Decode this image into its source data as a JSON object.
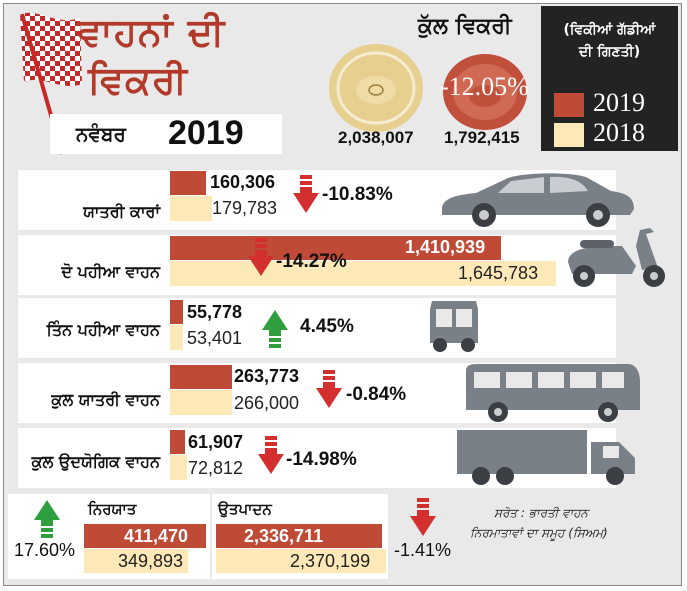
{
  "header": {
    "title_line1": "ਵਾਹਨਾਂ ਦੀ",
    "title_line2": "ਵਿਕਰੀ",
    "subtitle": "ਨਵੰਬਰ",
    "subtitle_year": "2019"
  },
  "total_sales": {
    "label": "ਕੁੱਲ ਵਿਕਰੀ",
    "value_2018": "2,038,007",
    "value_2019": "1,792,415",
    "change": "-12.05%"
  },
  "legend": {
    "title_line1": "(ਵਿਕੀਆਂ ਗੱਡੀਆਂ",
    "title_line2": "ਦੀ ਗਿਣਤੀ)",
    "items": [
      {
        "label": "2019",
        "color": "#bf4a36"
      },
      {
        "label": "2018",
        "color": "#fde9b8"
      }
    ]
  },
  "categories": [
    {
      "name": "ਯਾਤਰੀ ਕਾਰਾਂ",
      "v2019": "160,306",
      "v2018": "179,783",
      "change": "-10.83%",
      "direction": "down",
      "icon": "car-icon"
    },
    {
      "name": "ਦੋ ਪਹੀਆ ਵਾਹਨ",
      "v2019": "1,410,939",
      "v2018": "1,645,783",
      "change": "-14.27%",
      "direction": "down",
      "icon": "scooter-icon"
    },
    {
      "name": "ਤਿੰਨ ਪਹੀਆ ਵਾਹਨ",
      "v2019": "55,778",
      "v2018": "53,401",
      "change": "4.45%",
      "direction": "up",
      "icon": "auto-rickshaw-icon"
    },
    {
      "name": "ਕੁਲ ਯਾਤਰੀ ਵਾਹਨ",
      "v2019": "263,773",
      "v2018": "266,000",
      "change": "-0.84%",
      "direction": "down",
      "icon": "bus-icon"
    },
    {
      "name": "ਕੁਲ ਉਦਯੋਗਿਕ ਵਾਹਨ",
      "v2019": "61,907",
      "v2018": "72,812",
      "change": "-14.98%",
      "direction": "down",
      "icon": "truck-icon"
    }
  ],
  "exports": {
    "label": "ਨਿਰਯਾਤ",
    "v2019": "411,470",
    "v2018": "349,893",
    "change": "17.60%",
    "direction": "up"
  },
  "production": {
    "label": "ਉਤਪਾਦਨ",
    "v2019": "2,336,711",
    "v2018": "2,370,199",
    "change": "-1.41%",
    "direction": "down"
  },
  "source": {
    "line1": "ਸਰੋਤ : ਭਾਰਤੀ ਵਾਹਨ",
    "line2": "ਨਿਰਮਾਤਾਵਾਂ ਦਾ ਸਮੂਹ (ਸਿਅਮ)"
  },
  "chart_data": {
    "type": "bar",
    "title": "ਵਾਹਨਾਂ ਦੀ ਵਿਕਰੀ ਨਵੰਬਰ 2019",
    "categories": [
      "ਯਾਤਰੀ ਕਾਰਾਂ",
      "ਦੋ ਪਹੀਆ ਵਾਹਨ",
      "ਤਿੰਨ ਪਹੀਆ ਵਾਹਨ",
      "ਕੁਲ ਯਾਤਰੀ ਵਾਹਨ",
      "ਕੁਲ ਉਦਯੋਗਿਕ ਵਾਹਨ"
    ],
    "series": [
      {
        "name": "2019",
        "values": [
          160306,
          1410939,
          55778,
          263773,
          61907
        ]
      },
      {
        "name": "2018",
        "values": [
          179783,
          1645783,
          53401,
          266000,
          72812
        ]
      }
    ],
    "changes": [
      "-10.83%",
      "-14.27%",
      "4.45%",
      "-0.84%",
      "-14.98%"
    ],
    "legend": "top-right"
  }
}
